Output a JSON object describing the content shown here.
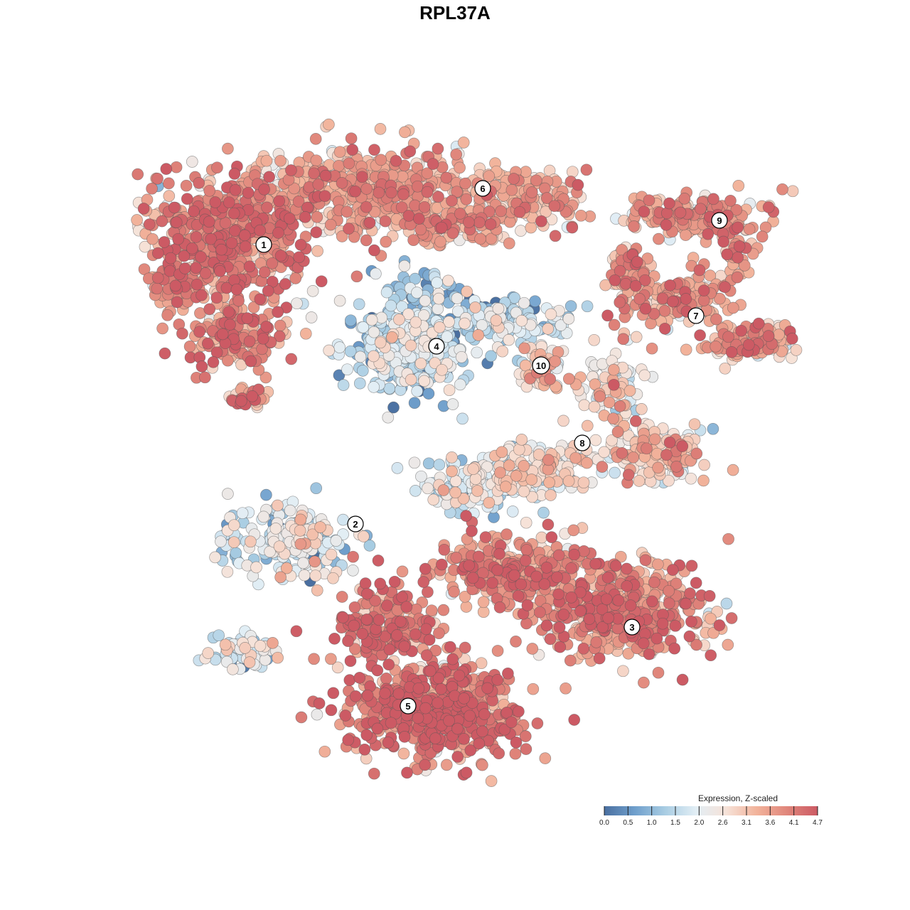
{
  "chart_data": {
    "type": "scatter",
    "title": "RPL37A",
    "xlabel": "",
    "ylabel": "",
    "grid": false,
    "color_scale": {
      "title": "Expression, Z-scaled",
      "min": 0.0,
      "max": 4.7,
      "ticks": [
        "0.0",
        "0.5",
        "1.0",
        "1.5",
        "2.0",
        "2.6",
        "3.1",
        "3.6",
        "4.1",
        "4.7"
      ],
      "colors": [
        "#4a6fa0",
        "#6f9fcc",
        "#a9cde3",
        "#e2eef5",
        "#f6e2d8",
        "#f2b39b",
        "#e0867b",
        "#cc5a64"
      ],
      "legend_position": "bottom-right"
    },
    "clusters": [
      {
        "label": "1",
        "mean_expression": 3.9
      },
      {
        "label": "2",
        "mean_expression": 2.0
      },
      {
        "label": "3",
        "mean_expression": 3.8
      },
      {
        "label": "4",
        "mean_expression": 1.5
      },
      {
        "label": "5",
        "mean_expression": 4.2
      },
      {
        "label": "6",
        "mean_expression": 3.4
      },
      {
        "label": "7",
        "mean_expression": 3.5
      },
      {
        "label": "8",
        "mean_expression": 2.8
      },
      {
        "label": "9",
        "mean_expression": 3.6
      },
      {
        "label": "10",
        "mean_expression": 2.9
      }
    ]
  }
}
